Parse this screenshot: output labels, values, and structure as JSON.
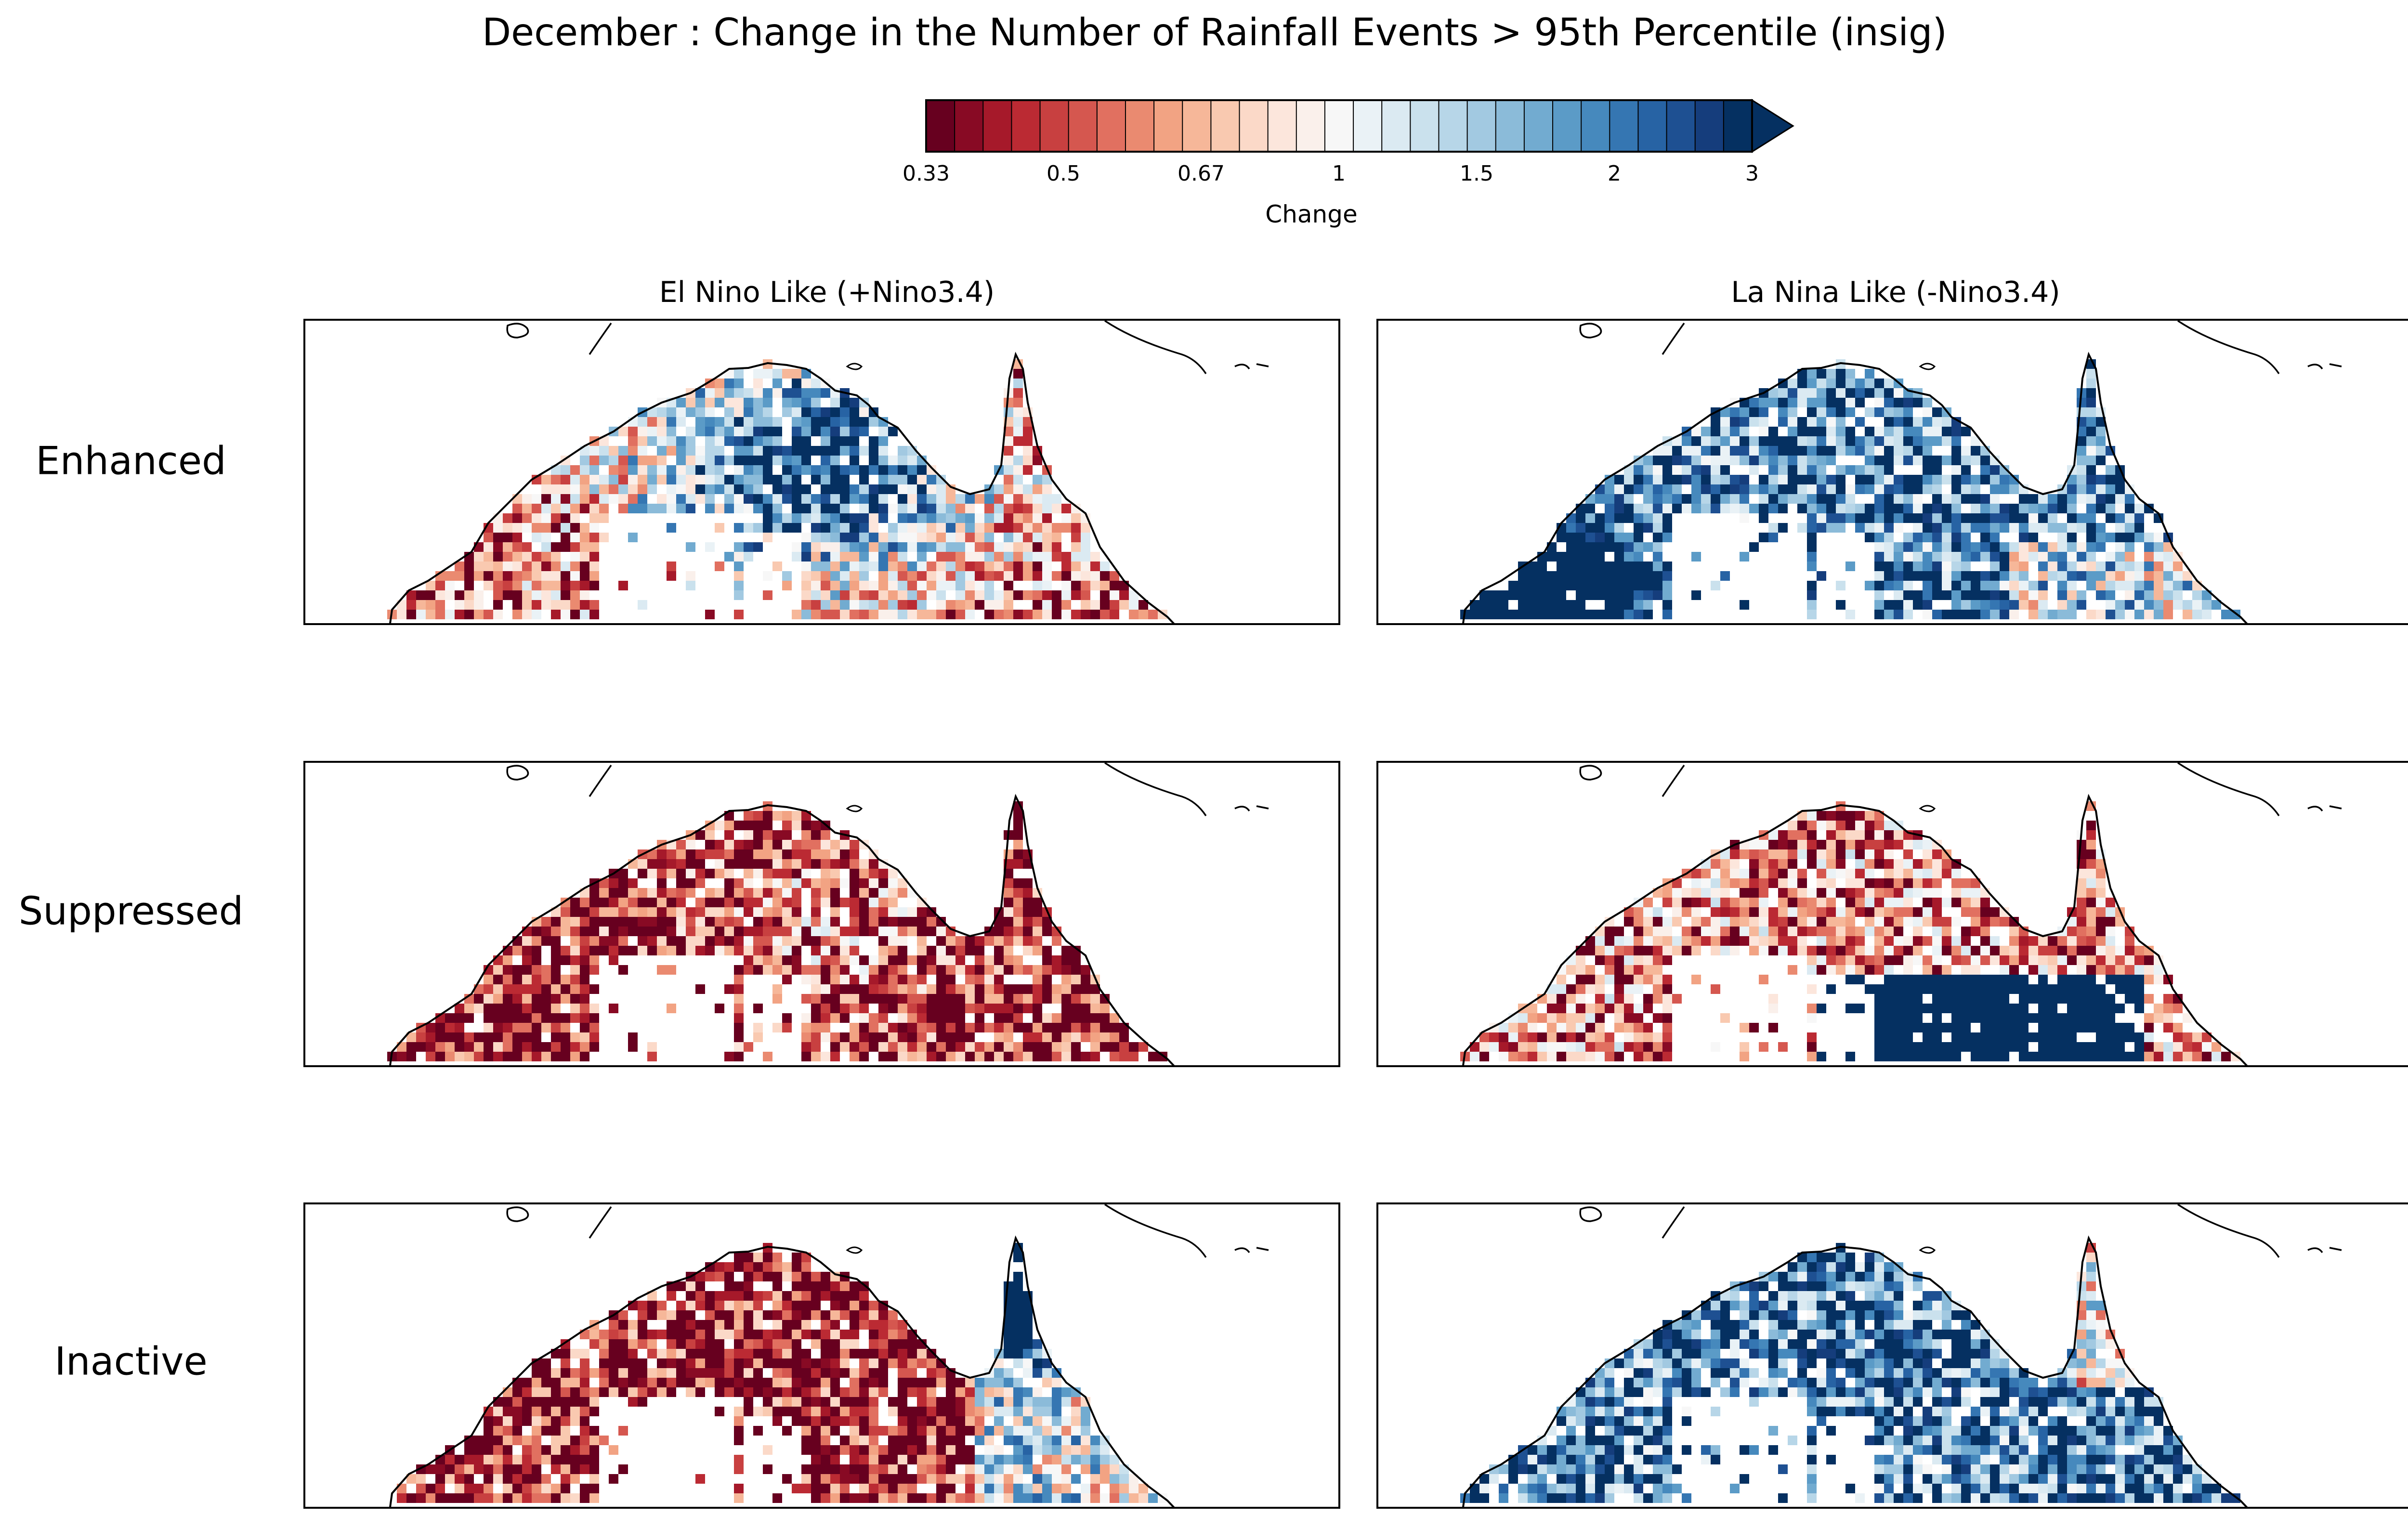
{
  "title": "December : Change in the Number of Rainfall Events > 95th Percentile (insig)",
  "colorbar": {
    "label": "Change",
    "ticks": [
      "0.33",
      "0.5",
      "0.67",
      "1",
      "1.5",
      "2",
      "3"
    ],
    "extend": "max",
    "colors": [
      "#67001f",
      "#880a24",
      "#a6192a",
      "#bb2a33",
      "#c84040",
      "#d5574f",
      "#e17060",
      "#ea8a70",
      "#f2a383",
      "#f6b799",
      "#f9c9b0",
      "#fbd9c8",
      "#fce6dc",
      "#faf0eb",
      "#f7f7f7",
      "#eaf2f6",
      "#dbeaf2",
      "#cae1ed",
      "#b7d6e8",
      "#a2c9e1",
      "#8bbbd9",
      "#72abd0",
      "#5b9bc7",
      "#4689bd",
      "#3576b2",
      "#2763a4",
      "#1e5092",
      "#153d7c",
      "#053061"
    ],
    "over_color": "#053061"
  },
  "columns": [
    {
      "title": "El Nino Like (+Nino3.4)"
    },
    {
      "title": "La Nina Like (-Nino3.4)"
    }
  ],
  "rows": [
    {
      "label": "Enhanced"
    },
    {
      "label": "Suppressed"
    },
    {
      "label": "Inactive"
    }
  ],
  "panels": [
    {
      "row": "Enhanced",
      "column": "El Nino Like (+Nino3.4)",
      "pattern": "mixed, blue center"
    },
    {
      "row": "Enhanced",
      "column": "La Nina Like (-Nino3.4)",
      "pattern": "mostly blue, dark blue west"
    },
    {
      "row": "Suppressed",
      "column": "El Nino Like (+Nino3.4)",
      "pattern": "mostly red"
    },
    {
      "row": "Suppressed",
      "column": "La Nina Like (-Nino3.4)",
      "pattern": "red north, blue south"
    },
    {
      "row": "Inactive",
      "column": "El Nino Like (+Nino3.4)",
      "pattern": "red west, blue cape"
    },
    {
      "row": "Inactive",
      "column": "La Nina Like (-Nino3.4)",
      "pattern": "mostly blue"
    }
  ]
}
